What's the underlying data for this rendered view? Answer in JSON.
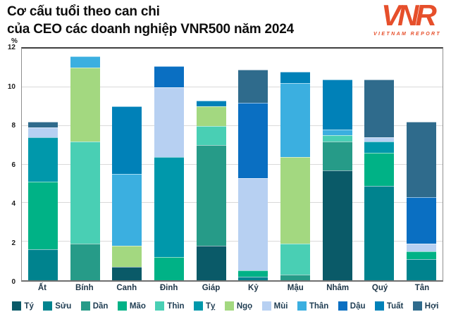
{
  "header": {
    "title_line1": "Cơ cấu tuổi theo can chi",
    "title_line2": "của CEO các doanh nghiệp VNR500 năm 2024",
    "logo_text": "VNR",
    "logo_subtext": "VIETNAM REPORT",
    "logo_color": "#E64F2B"
  },
  "chart_data": {
    "type": "bar",
    "stacked": true,
    "title": "Cơ cấu tuổi theo can chi của CEO các doanh nghiệp VNR500 năm 2024",
    "unit_label": "%",
    "xlabel": "",
    "ylabel": "%",
    "ylim": [
      0,
      12
    ],
    "yticks": [
      0,
      2,
      4,
      6,
      8,
      10,
      12
    ],
    "grid": true,
    "legend_position": "bottom",
    "categories": [
      "Ất",
      "Bính",
      "Canh",
      "Đinh",
      "Giáp",
      "Kỷ",
      "Mậu",
      "Nhâm",
      "Quý",
      "Tân"
    ],
    "series": [
      {
        "name": "Tý",
        "color": "#0A5A68",
        "values": [
          0,
          0,
          0.7,
          0,
          1.8,
          0,
          0,
          5.7,
          0,
          0
        ]
      },
      {
        "name": "Sửu",
        "color": "#00838E",
        "values": [
          1.6,
          0,
          0,
          0,
          0,
          0.2,
          0,
          0,
          4.9,
          1.1
        ]
      },
      {
        "name": "Dần",
        "color": "#269B88",
        "values": [
          0,
          1.9,
          0,
          0,
          5.2,
          0,
          0.3,
          1.5,
          0,
          0
        ]
      },
      {
        "name": "Mão",
        "color": "#00B286",
        "values": [
          3.5,
          0,
          0,
          1.2,
          0,
          0.3,
          0,
          0,
          1.7,
          0.4
        ]
      },
      {
        "name": "Thìn",
        "color": "#49CFB4",
        "values": [
          0,
          5.3,
          0,
          0,
          1.0,
          0,
          1.6,
          0.3,
          0,
          0
        ]
      },
      {
        "name": "Tỵ",
        "color": "#0098AB",
        "values": [
          2.3,
          0,
          0,
          5.2,
          0,
          0,
          0,
          0,
          0.6,
          0
        ]
      },
      {
        "name": "Ngọ",
        "color": "#A3D880",
        "values": [
          0,
          3.8,
          1.1,
          0,
          1.0,
          0,
          4.5,
          0,
          0,
          0
        ]
      },
      {
        "name": "Mùi",
        "color": "#B7D0F2",
        "values": [
          0.5,
          0,
          0,
          3.6,
          0,
          4.8,
          0,
          0,
          0.2,
          0.4
        ]
      },
      {
        "name": "Thân",
        "color": "#3BAFE0",
        "values": [
          0,
          0.6,
          3.7,
          0,
          0,
          0,
          3.8,
          0.3,
          0,
          0
        ]
      },
      {
        "name": "Dậu",
        "color": "#0A6FC2",
        "values": [
          0,
          0,
          0,
          1.1,
          0,
          3.9,
          0,
          0,
          0,
          2.4
        ]
      },
      {
        "name": "Tuất",
        "color": "#0081B8",
        "values": [
          0,
          0,
          3.5,
          0,
          0.3,
          0,
          0.6,
          2.6,
          0,
          0
        ]
      },
      {
        "name": "Hợi",
        "color": "#2F6B8C",
        "values": [
          0.3,
          0,
          0,
          0,
          0,
          1.7,
          0,
          0,
          3.0,
          3.9
        ]
      }
    ]
  }
}
